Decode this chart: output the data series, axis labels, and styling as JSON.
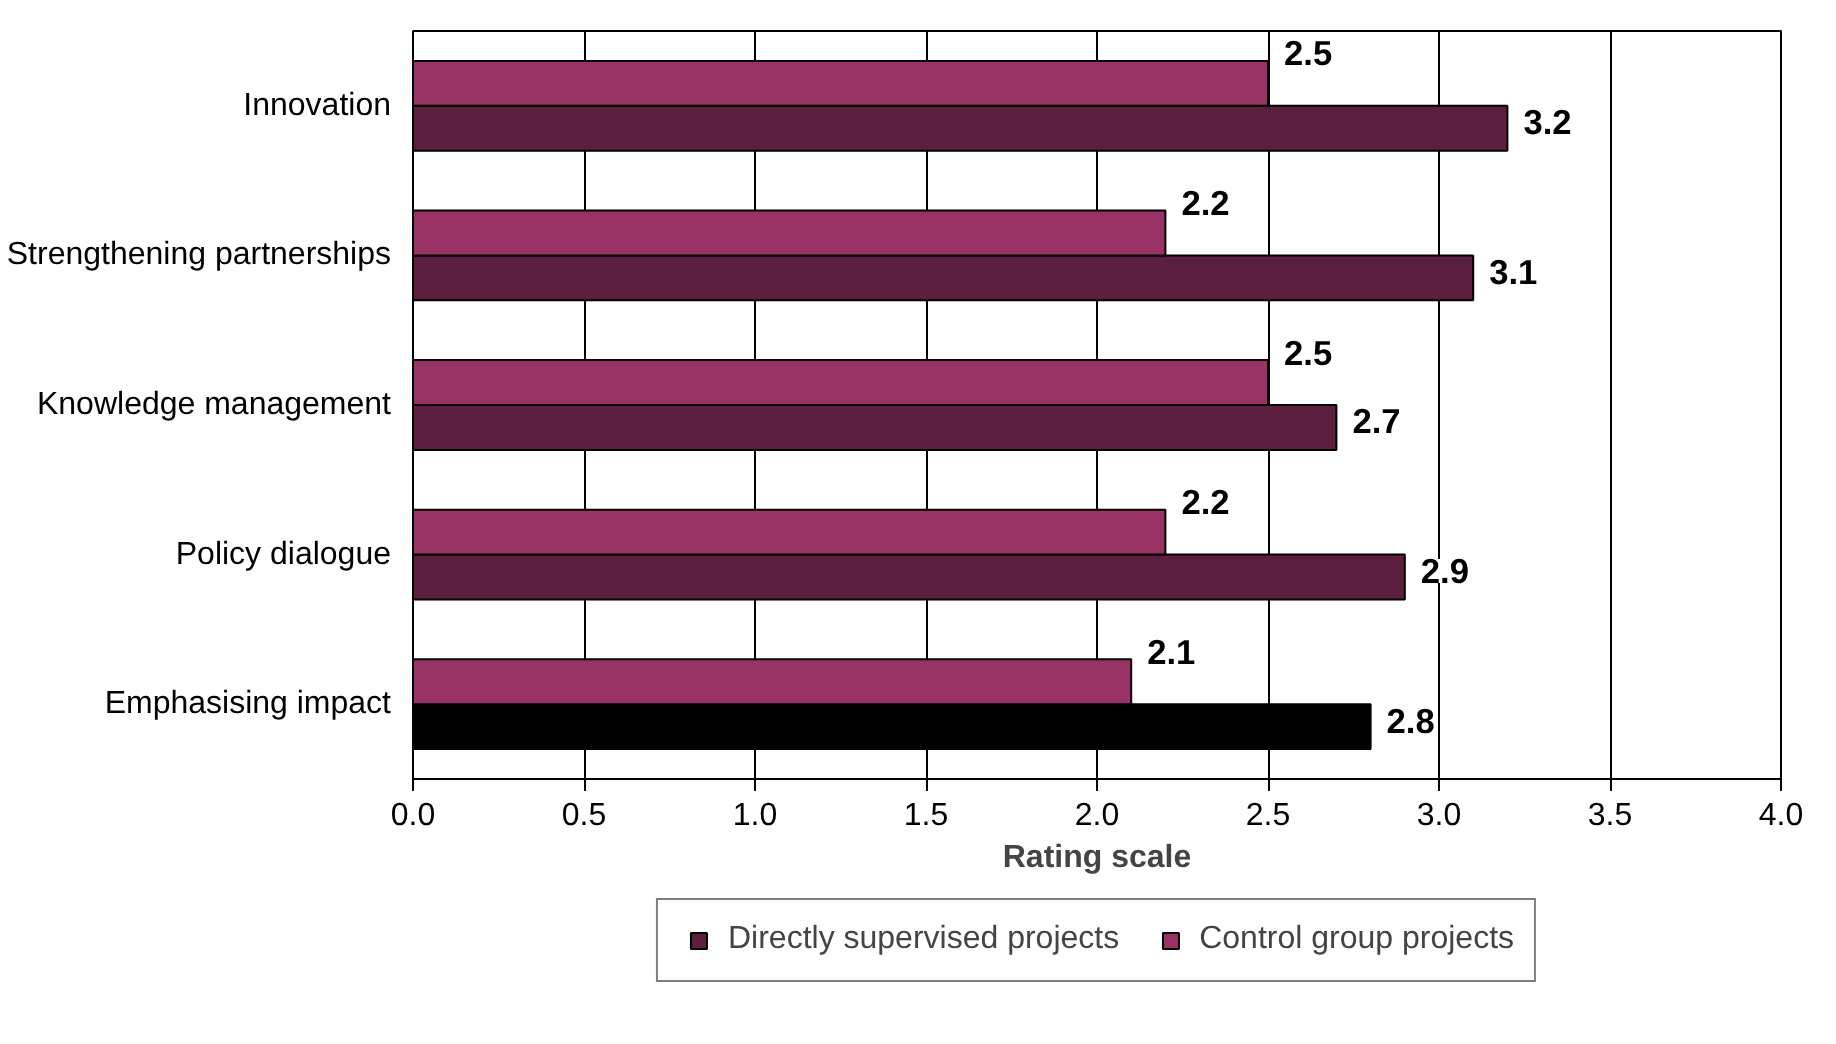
{
  "chart_data": {
    "type": "bar",
    "orientation": "horizontal",
    "xlabel": "Rating scale",
    "categories": [
      "Innovation",
      "Strengthening partnerships",
      "Knowledge management",
      "Policy dialogue",
      "Emphasising impact"
    ],
    "series": [
      {
        "name": "Directly supervised projects",
        "color": "#5c1f3d",
        "colors": [
          "#5c1f3d",
          "#5c1f3d",
          "#5c1f3d",
          "#5c1f3d",
          "#000000"
        ],
        "values": [
          3.2,
          3.1,
          2.7,
          2.9,
          2.8
        ]
      },
      {
        "name": "Control group projects",
        "color": "#993366",
        "values": [
          2.5,
          2.2,
          2.5,
          2.2,
          2.1
        ]
      }
    ],
    "xlim": [
      0,
      4
    ],
    "xticks": [
      {
        "value": 0,
        "label": "0.0"
      },
      {
        "value": 0.5,
        "label": "0.5"
      },
      {
        "value": 1,
        "label": "1.0"
      },
      {
        "value": 1.5,
        "label": "1.5"
      },
      {
        "value": 2,
        "label": "2.0"
      },
      {
        "value": 2.5,
        "label": "2.5"
      },
      {
        "value": 3,
        "label": "3.0"
      },
      {
        "value": 3.5,
        "label": "3.5"
      },
      {
        "value": 4,
        "label": "4.0"
      }
    ],
    "grid": "x",
    "legend": "bottom",
    "data_labels": true
  }
}
